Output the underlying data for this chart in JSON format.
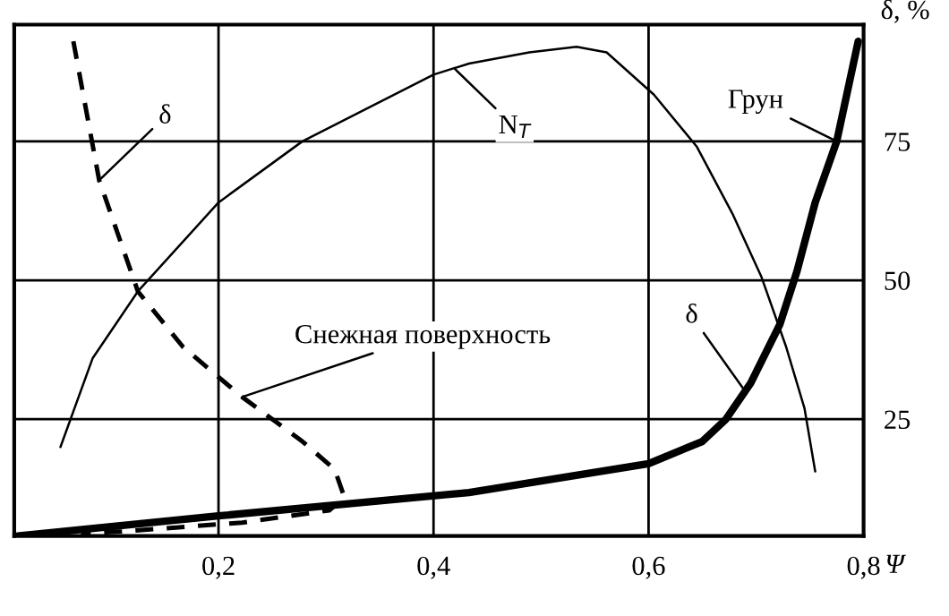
{
  "chart_data": {
    "type": "line",
    "xlabel": "Ψ",
    "ylabel": "δ, %",
    "xlim": [
      0.01,
      0.8
    ],
    "ylim": [
      4,
      96
    ],
    "xticks": [
      {
        "value": 0.2,
        "label": "0,2"
      },
      {
        "value": 0.4,
        "label": "0,4"
      },
      {
        "value": 0.6,
        "label": "0,6"
      },
      {
        "value": 0.8,
        "label": "0,8"
      }
    ],
    "yticks": [
      25,
      50,
      75
    ],
    "grid": true,
    "legend": false,
    "series": [
      {
        "color": "#000000",
        "line_style": "dashed",
        "x": [
          0.065,
          0.089,
          0.125,
          0.167,
          0.222,
          0.278,
          0.308,
          0.317,
          0.303,
          0.222,
          0.11,
          0.072
        ],
        "values": [
          93,
          68,
          48,
          38,
          29,
          21,
          16,
          11,
          8.6,
          6.4,
          4.8,
          4.5
        ]
      },
      {
        "color": "#000000",
        "line_style": "solid",
        "x": [
          0.053,
          0.083,
          0.125,
          0.2,
          0.278,
          0.4,
          0.433,
          0.489,
          0.533,
          0.561,
          0.605,
          0.645,
          0.678,
          0.705,
          0.728,
          0.745,
          0.755
        ],
        "values": [
          20,
          36,
          48,
          64,
          75,
          87,
          89,
          91,
          92,
          91,
          83.4,
          74,
          62,
          50.6,
          38,
          27,
          15.6
        ]
      },
      {
        "color": "#000000",
        "line_style": "solid",
        "x": [
          0.013,
          0.2,
          0.433,
          0.6,
          0.65,
          0.672,
          0.695,
          0.722,
          0.738,
          0.755,
          0.775,
          0.795
        ],
        "values": [
          4,
          7.6,
          11.8,
          17,
          21,
          25,
          31.5,
          42,
          51.6,
          64,
          75,
          93
        ]
      }
    ],
    "annotations": [
      {
        "text": "δ",
        "x": 0.089,
        "y": 68
      },
      {
        "text": "N$_{T}$",
        "x": 0.42,
        "y": 88
      },
      {
        "text": "Грун",
        "x": 0.775,
        "y": 75
      },
      {
        "text": "δ",
        "x": 0.69,
        "y": 30
      },
      {
        "text": "Снежная поверхность",
        "x": 0.222,
        "y": 29
      }
    ]
  }
}
